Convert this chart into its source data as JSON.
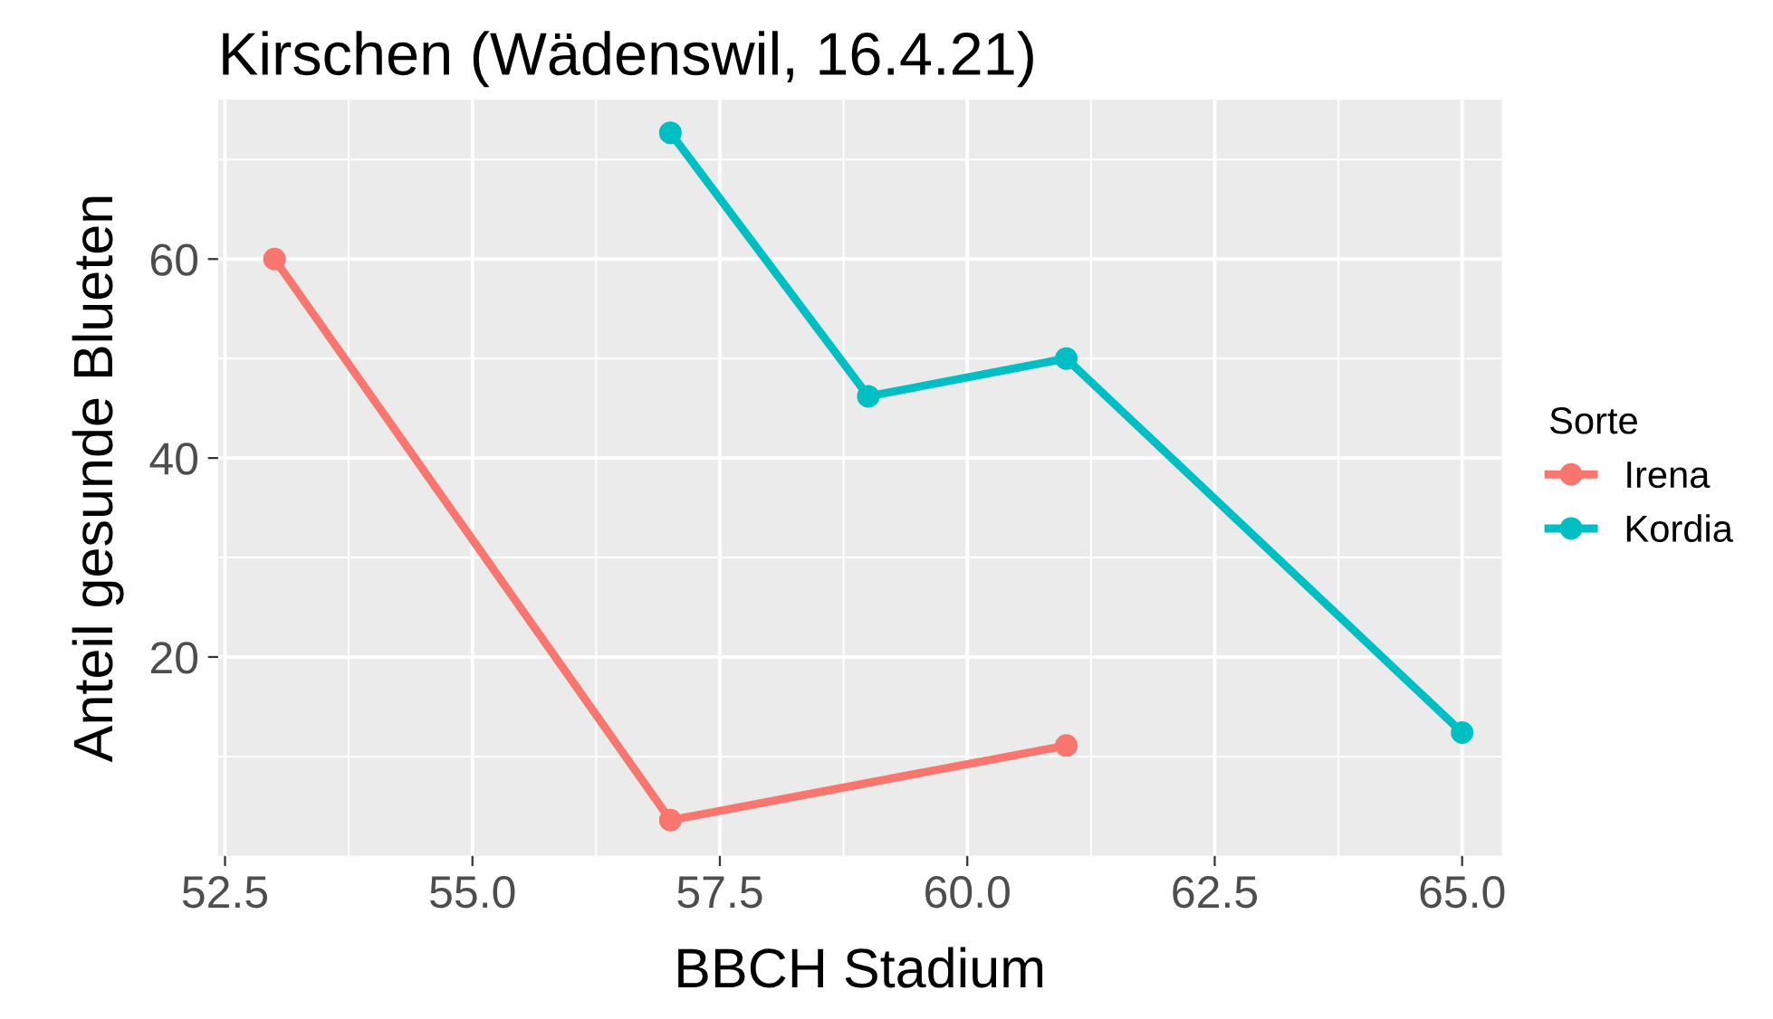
{
  "chart_data": {
    "type": "line",
    "title": "Kirschen (Wädenswil, 16.4.21)",
    "xlabel": "BBCH Stadium",
    "ylabel": "Anteil gesunde Blueten",
    "legend_title": "Sorte",
    "series": [
      {
        "name": "Irena",
        "color": "#f8766d",
        "x": [
          53,
          57,
          61
        ],
        "values": [
          60,
          3.6,
          11.1
        ]
      },
      {
        "name": "Kordia",
        "color": "#00bfc4",
        "x": [
          57,
          59,
          61,
          65
        ],
        "values": [
          72.7,
          46.2,
          50,
          12.4
        ]
      }
    ],
    "xlim": [
      52.43,
      65.4
    ],
    "ylim": [
      0,
      76
    ],
    "xticks": [
      {
        "value": 52.5,
        "label": "52.5"
      },
      {
        "value": 55,
        "label": "55.0"
      },
      {
        "value": 57.5,
        "label": "57.5"
      },
      {
        "value": 60,
        "label": "60.0"
      },
      {
        "value": 62.5,
        "label": "62.5"
      },
      {
        "value": 65,
        "label": "65.0"
      }
    ],
    "yticks": [
      20,
      40,
      60
    ],
    "grid": true,
    "legend": "right",
    "marker": "circle",
    "line_style": "solid"
  }
}
